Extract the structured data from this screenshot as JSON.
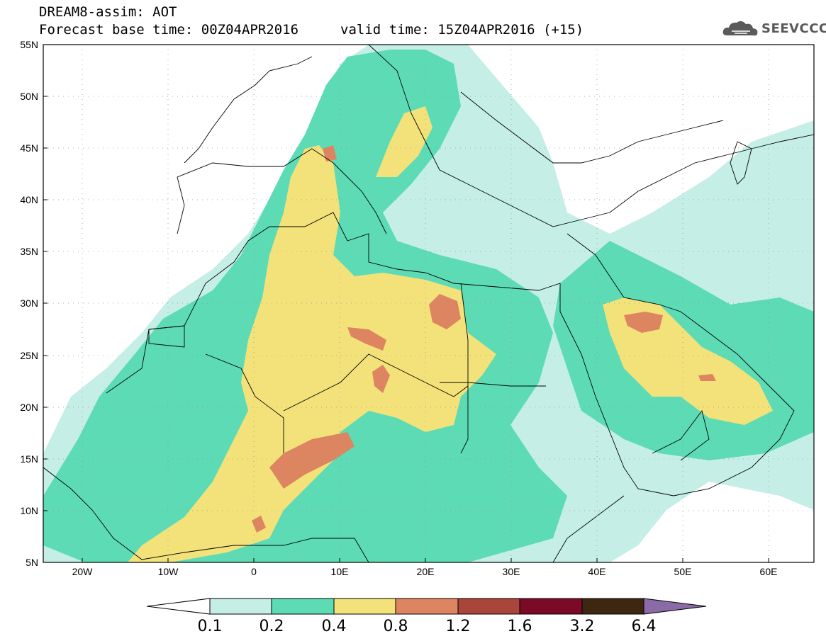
{
  "header": {
    "title": "DREAM8-assim: AOT",
    "base_time": "Forecast base time: 00Z04APR2016",
    "valid_time": "valid time: 15Z04APR2016 (+15)",
    "logo_text": "SEEVCCC"
  },
  "map": {
    "variable": "AOT",
    "lon_range": [
      -25,
      65
    ],
    "lat_range": [
      5,
      55
    ],
    "lat_labels": [
      "55N",
      "50N",
      "45N",
      "40N",
      "35N",
      "30N",
      "25N",
      "20N",
      "15N",
      "10N",
      "5N"
    ],
    "lon_labels": [
      "20W",
      "10W",
      "0",
      "10E",
      "20E",
      "30E",
      "40E",
      "50E",
      "60E"
    ],
    "gridlines": "dotted"
  },
  "colorbar": {
    "levels": [
      "0.1",
      "0.2",
      "0.4",
      "0.8",
      "1.2",
      "1.6",
      "3.2",
      "6.4"
    ],
    "colors": [
      "#ffffff",
      "#c5eee6",
      "#5ddbb5",
      "#f3e27a",
      "#dd8560",
      "#a9453a",
      "#7b0a26",
      "#3e2711",
      "#8b6aa8"
    ]
  }
}
